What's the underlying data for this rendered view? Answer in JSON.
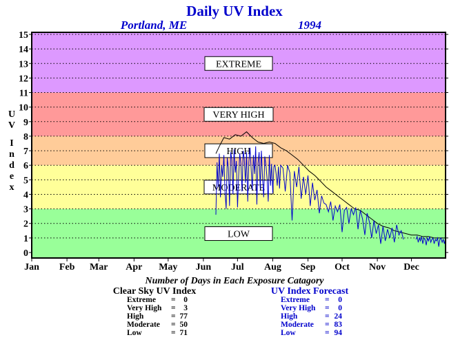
{
  "chart_data": {
    "type": "line",
    "title": "Daily UV Index",
    "location": "Portland, ME",
    "year": "1994",
    "ylabel": "UV Index",
    "ylim": [
      0,
      15
    ],
    "yticks": [
      0,
      1,
      2,
      3,
      4,
      5,
      6,
      7,
      8,
      9,
      10,
      11,
      12,
      13,
      14,
      15
    ],
    "xlim": [
      1,
      365
    ],
    "months": [
      {
        "label": "Jan",
        "day": 1
      },
      {
        "label": "Feb",
        "day": 32
      },
      {
        "label": "Mar",
        "day": 60
      },
      {
        "label": "Apr",
        "day": 91
      },
      {
        "label": "May",
        "day": 121
      },
      {
        "label": "Jun",
        "day": 152
      },
      {
        "label": "Jul",
        "day": 182
      },
      {
        "label": "Aug",
        "day": 213
      },
      {
        "label": "Sep",
        "day": 244
      },
      {
        "label": "Oct",
        "day": 274
      },
      {
        "label": "Nov",
        "day": 305
      },
      {
        "label": "Dec",
        "day": 335
      }
    ],
    "grid": true,
    "bands": [
      {
        "label": "LOW",
        "from": 0,
        "to": 3,
        "color": "#99ff99",
        "label_at": 1.3
      },
      {
        "label": "MODERATE",
        "from": 3,
        "to": 6,
        "color": "#ffff99",
        "label_at": 4.5
      },
      {
        "label": "HIGH",
        "from": 6,
        "to": 8,
        "color": "#ffcc99",
        "label_at": 7
      },
      {
        "label": "VERY HIGH",
        "from": 8,
        "to": 11,
        "color": "#ff9999",
        "label_at": 9.5
      },
      {
        "label": "EXTREME",
        "from": 11,
        "to": 16,
        "color": "#dd99ff",
        "label_at": 13
      }
    ],
    "series": [
      {
        "name": "Clear Sky UV Index",
        "color": "#000000",
        "x": [
          163,
          166,
          170,
          175,
          180,
          185,
          190,
          195,
          200,
          205,
          210,
          215,
          220,
          225,
          230,
          235,
          240,
          245,
          250,
          255,
          260,
          265,
          270,
          275,
          280,
          285,
          290,
          295,
          300,
          305,
          310,
          315,
          320,
          325,
          330,
          335,
          340,
          345,
          350,
          355,
          360,
          365
        ],
        "y": [
          6.8,
          7.3,
          7.9,
          7.8,
          8.1,
          8.0,
          8.3,
          7.9,
          7.6,
          7.5,
          7.6,
          7.5,
          7.2,
          7.0,
          6.7,
          6.4,
          6.0,
          5.6,
          5.3,
          4.9,
          4.5,
          4.2,
          3.9,
          3.6,
          3.3,
          3.0,
          2.9,
          2.6,
          2.3,
          2.0,
          1.8,
          1.7,
          1.5,
          1.4,
          1.3,
          1.2,
          1.2,
          1.1,
          1.1,
          1.0,
          1.0,
          1.0
        ]
      },
      {
        "name": "UV Index Forecast",
        "color": "#0000cc",
        "x": [
          163,
          164,
          165,
          166,
          167,
          168,
          169,
          170,
          171,
          172,
          173,
          174,
          175,
          176,
          177,
          178,
          179,
          180,
          181,
          182,
          183,
          184,
          185,
          186,
          187,
          188,
          189,
          190,
          191,
          192,
          193,
          194,
          195,
          196,
          197,
          198,
          199,
          200,
          201,
          202,
          203,
          204,
          205,
          206,
          207,
          208,
          209,
          210,
          211,
          212,
          213,
          214,
          215,
          216,
          217,
          218,
          219,
          220,
          222,
          224,
          226,
          228,
          230,
          232,
          234,
          236,
          238,
          240,
          242,
          244,
          246,
          248,
          250,
          252,
          254,
          256,
          258,
          260,
          262,
          264,
          266,
          268,
          270,
          272,
          274,
          276,
          278,
          280,
          282,
          284,
          286,
          288,
          290,
          292,
          294,
          296,
          298,
          300,
          302,
          304,
          306,
          308,
          310,
          312,
          314,
          316,
          318,
          320,
          322,
          324,
          326,
          328
        ],
        "y": [
          2.6,
          6.2,
          4.5,
          6.8,
          3.8,
          6.0,
          5.2,
          6.7,
          4.2,
          3.0,
          6.5,
          5.8,
          3.2,
          6.9,
          6.4,
          4.0,
          7.1,
          5.5,
          6.3,
          3.1,
          5.2,
          6.8,
          6.1,
          4.2,
          7.0,
          6.4,
          4.8,
          6.9,
          3.5,
          6.2,
          7.2,
          5.8,
          4.3,
          6.7,
          5.4,
          7.3,
          3.3,
          6.1,
          6.9,
          4.4,
          7.0,
          5.2,
          3.8,
          6.6,
          6.0,
          5.1,
          3.5,
          6.7,
          4.6,
          6.1,
          4.1,
          5.9,
          6.0,
          5.4,
          4.6,
          5.9,
          4.4,
          6.0,
          5.8,
          4.2,
          6.0,
          5.5,
          2.2,
          5.6,
          4.5,
          5.9,
          3.7,
          5.2,
          4.0,
          5.3,
          3.2,
          4.8,
          3.6,
          4.3,
          2.7,
          3.9,
          3.4,
          3.3,
          2.8,
          3.5,
          2.2,
          3.2,
          2.8,
          3.3,
          1.4,
          2.9,
          3.1,
          2.0,
          3.0,
          2.6,
          3.1,
          1.6,
          2.9,
          2.3,
          1.2,
          2.7,
          2.1,
          1.0,
          2.2,
          1.3,
          1.9,
          0.6,
          1.8,
          0.8,
          1.6,
          1.0,
          1.7,
          0.7,
          1.9,
          1.2,
          1.5,
          0.9
        ]
      },
      {
        "name": "UV Index Forecast (Dec)",
        "color": "#0000cc",
        "x": [
          339,
          340,
          341,
          342,
          343,
          344,
          345,
          346,
          347,
          348,
          349,
          350,
          351,
          352,
          353,
          354,
          355,
          356,
          357,
          358,
          359,
          360,
          361,
          362,
          363,
          364,
          365
        ],
        "y": [
          0.9,
          1.1,
          0.7,
          1.0,
          0.8,
          1.1,
          0.6,
          1.0,
          0.9,
          0.5,
          1.0,
          0.8,
          1.1,
          0.7,
          0.9,
          1.0,
          0.6,
          0.9,
          0.8,
          1.0,
          0.4,
          0.9,
          1.0,
          0.7,
          0.9,
          0.6,
          1.0
        ]
      }
    ],
    "xlabel": "Number of Days in Each Exposure Catagory",
    "summary": [
      {
        "title": "Clear Sky UV Index",
        "color": "#000000",
        "rows": [
          {
            "label": "Extreme",
            "value": "0"
          },
          {
            "label": "Very High",
            "value": "3"
          },
          {
            "label": "High",
            "value": "77"
          },
          {
            "label": "Moderate",
            "value": "50"
          },
          {
            "label": "Low",
            "value": "71"
          }
        ]
      },
      {
        "title": "UV Index Forecast",
        "color": "#0000cc",
        "rows": [
          {
            "label": "Extreme",
            "value": "0"
          },
          {
            "label": "Very High",
            "value": "0"
          },
          {
            "label": "High",
            "value": "24"
          },
          {
            "label": "Moderate",
            "value": "83"
          },
          {
            "label": "Low",
            "value": "94"
          }
        ]
      }
    ]
  }
}
